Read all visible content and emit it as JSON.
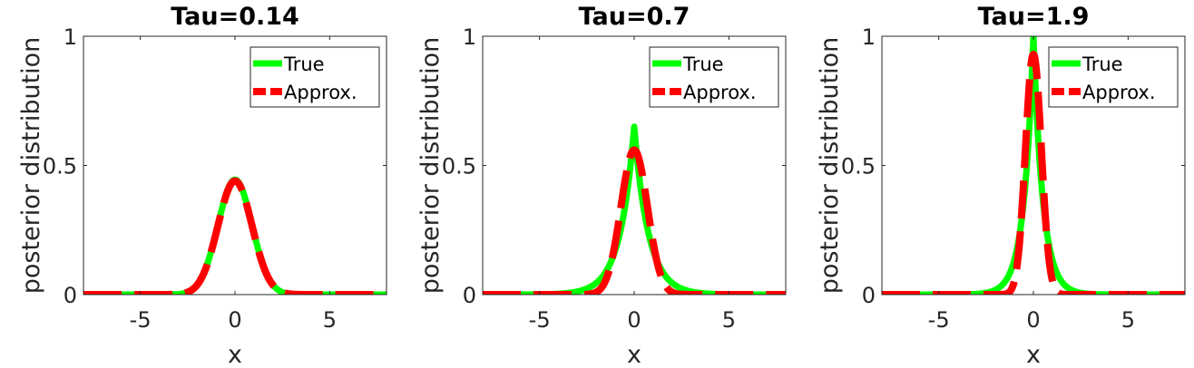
{
  "chart_data": [
    {
      "type": "line",
      "title": "Tau=0.14",
      "xlabel": "x",
      "ylabel": "posterior distribution",
      "xlim": [
        -8,
        8
      ],
      "ylim": [
        0,
        1
      ],
      "xticks": [
        -5,
        0,
        5
      ],
      "xtick_labels": [
        "-5",
        "0",
        "5"
      ],
      "yticks": [
        0,
        0.5,
        1
      ],
      "ytick_labels": [
        "0",
        "0.5",
        "1"
      ],
      "grid": false,
      "legend_position": "top-right",
      "series": [
        {
          "name": "True",
          "color": "#00ff00",
          "style": "solid",
          "shape": "gaussian",
          "mu": 0,
          "peak": 0.445,
          "sigma": 0.9
        },
        {
          "name": "Approx.",
          "color": "#ff0000",
          "style": "dashed",
          "shape": "gaussian",
          "mu": 0,
          "peak": 0.44,
          "sigma": 0.9
        }
      ]
    },
    {
      "type": "line",
      "title": "Tau=0.7",
      "xlabel": "x",
      "ylabel": "posterior distribution",
      "xlim": [
        -8,
        8
      ],
      "ylim": [
        0,
        1
      ],
      "xticks": [
        -5,
        0,
        5
      ],
      "xtick_labels": [
        "-5",
        "0",
        "5"
      ],
      "yticks": [
        0,
        0.5,
        1
      ],
      "ytick_labels": [
        "0",
        "0.5",
        "1"
      ],
      "grid": false,
      "legend_position": "top-right",
      "series": [
        {
          "name": "True",
          "color": "#00ff00",
          "style": "solid",
          "shape": "laplace",
          "mu": 0,
          "peak": 0.65,
          "scale": 0.75
        },
        {
          "name": "Approx.",
          "color": "#ff0000",
          "style": "dashed",
          "shape": "gaussian",
          "mu": 0,
          "peak": 0.56,
          "sigma": 0.7
        }
      ]
    },
    {
      "type": "line",
      "title": "Tau=1.9",
      "xlabel": "x",
      "ylabel": "posterior distribution",
      "xlim": [
        -8,
        8
      ],
      "ylim": [
        0,
        1
      ],
      "xticks": [
        -5,
        0,
        5
      ],
      "xtick_labels": [
        "-5",
        "0",
        "5"
      ],
      "yticks": [
        0,
        0.5,
        1
      ],
      "ytick_labels": [
        "0",
        "0.5",
        "1"
      ],
      "grid": false,
      "legend_position": "top-right",
      "series": [
        {
          "name": "True",
          "color": "#00ff00",
          "style": "solid",
          "shape": "laplace",
          "mu": 0,
          "peak": 1.0,
          "scale": 0.5
        },
        {
          "name": "Approx.",
          "color": "#ff0000",
          "style": "dashed",
          "shape": "gaussian",
          "mu": 0,
          "peak": 0.93,
          "sigma": 0.42
        }
      ]
    }
  ]
}
